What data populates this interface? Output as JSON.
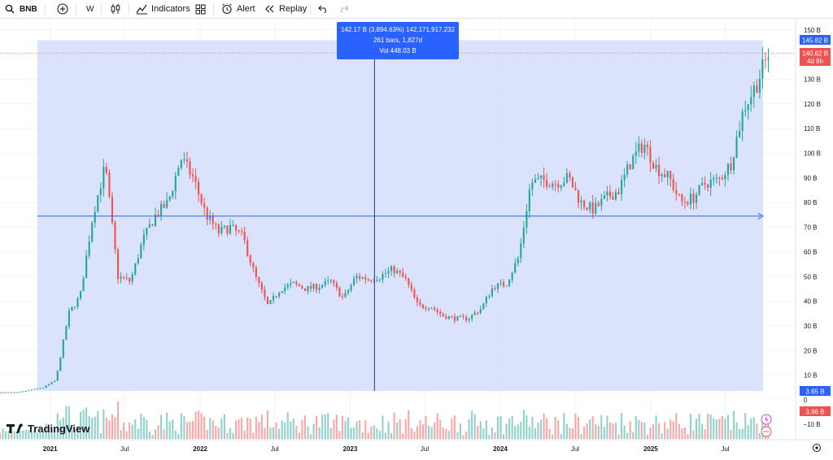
{
  "toolbar": {
    "symbol": "BNB",
    "interval": "W",
    "indicators_label": "Indicators",
    "alert_label": "Alert",
    "replay_label": "Replay"
  },
  "measure_tooltip": {
    "line1": "142.17 B (3,894.63%) 142,171,917,232",
    "line2": "261 bars, 1,827d",
    "line3": "Vol 448.03 B"
  },
  "price_axis": {
    "ticks": [
      "150 B",
      "140 B",
      "130 B",
      "120 B",
      "110 B",
      "100 B",
      "90 B",
      "80 B",
      "70 B",
      "60 B",
      "50 B",
      "40 B",
      "30 B",
      "20 B",
      "10 B"
    ],
    "top_label": "145.82 B",
    "current_label": "140.62 B",
    "countdown_label": "4d 8h",
    "bottom_label": "3.65 B"
  },
  "volume_axis": {
    "ticks": [
      "0",
      "−10 B"
    ],
    "current_label": "3.96 B"
  },
  "time_axis": {
    "labels": [
      "2021",
      "Jul",
      "2022",
      "Jul",
      "2023",
      "Jul",
      "2024",
      "Jul",
      "2025",
      "Jul"
    ]
  },
  "logo_text": "TradingView",
  "colors": {
    "up": "#26a69a",
    "down": "#ef5350",
    "measure_fill": "#d4ddfb",
    "measure_line": "#2962ff",
    "accent": "#2962ff"
  },
  "chart_data": {
    "type": "candlestick",
    "title": "",
    "x_start": "2020-09",
    "x_end": "2025-10",
    "y_unit": "B",
    "ylim": [
      0,
      150
    ],
    "weekly_close_trend": [
      {
        "date": "2020-10",
        "value": 3
      },
      {
        "date": "2020-12",
        "value": 5
      },
      {
        "date": "2021-01",
        "value": 8
      },
      {
        "date": "2021-02",
        "value": 35
      },
      {
        "date": "2021-03",
        "value": 42
      },
      {
        "date": "2021-04",
        "value": 75
      },
      {
        "date": "2021-05",
        "value": 95
      },
      {
        "date": "2021-06",
        "value": 50
      },
      {
        "date": "2021-07",
        "value": 48
      },
      {
        "date": "2021-08",
        "value": 65
      },
      {
        "date": "2021-09",
        "value": 75
      },
      {
        "date": "2021-10",
        "value": 80
      },
      {
        "date": "2021-11",
        "value": 98
      },
      {
        "date": "2021-12",
        "value": 90
      },
      {
        "date": "2022-01",
        "value": 75
      },
      {
        "date": "2022-02",
        "value": 68
      },
      {
        "date": "2022-03",
        "value": 70
      },
      {
        "date": "2022-04",
        "value": 66
      },
      {
        "date": "2022-05",
        "value": 50
      },
      {
        "date": "2022-06",
        "value": 38
      },
      {
        "date": "2022-07",
        "value": 45
      },
      {
        "date": "2022-08",
        "value": 47
      },
      {
        "date": "2022-09",
        "value": 45
      },
      {
        "date": "2022-10",
        "value": 46
      },
      {
        "date": "2022-11",
        "value": 48
      },
      {
        "date": "2022-12",
        "value": 41
      },
      {
        "date": "2023-01",
        "value": 50
      },
      {
        "date": "2023-02",
        "value": 49
      },
      {
        "date": "2023-03",
        "value": 50
      },
      {
        "date": "2023-04",
        "value": 53
      },
      {
        "date": "2023-05",
        "value": 49
      },
      {
        "date": "2023-06",
        "value": 38
      },
      {
        "date": "2023-07",
        "value": 38
      },
      {
        "date": "2023-08",
        "value": 34
      },
      {
        "date": "2023-09",
        "value": 33
      },
      {
        "date": "2023-10",
        "value": 33
      },
      {
        "date": "2023-11",
        "value": 37
      },
      {
        "date": "2023-12",
        "value": 46
      },
      {
        "date": "2024-01",
        "value": 47
      },
      {
        "date": "2024-02",
        "value": 58
      },
      {
        "date": "2024-03",
        "value": 88
      },
      {
        "date": "2024-04",
        "value": 89
      },
      {
        "date": "2024-05",
        "value": 88
      },
      {
        "date": "2024-06",
        "value": 90
      },
      {
        "date": "2024-07",
        "value": 80
      },
      {
        "date": "2024-08",
        "value": 77
      },
      {
        "date": "2024-09",
        "value": 82
      },
      {
        "date": "2024-10",
        "value": 85
      },
      {
        "date": "2024-11",
        "value": 97
      },
      {
        "date": "2024-12",
        "value": 104
      },
      {
        "date": "2025-01",
        "value": 94
      },
      {
        "date": "2025-02",
        "value": 90
      },
      {
        "date": "2025-03",
        "value": 80
      },
      {
        "date": "2025-04",
        "value": 82
      },
      {
        "date": "2025-05",
        "value": 88
      },
      {
        "date": "2025-06",
        "value": 89
      },
      {
        "date": "2025-07",
        "value": 96
      },
      {
        "date": "2025-08",
        "value": 118
      },
      {
        "date": "2025-09",
        "value": 128
      },
      {
        "date": "2025-10",
        "value": 140.62
      }
    ],
    "measure_range": {
      "x_from": "2020-12",
      "x_to": "2025-10",
      "y_from": 3.65,
      "y_to": 145.82
    },
    "crosshair": {
      "x": "2023-03",
      "y": 74.5
    }
  }
}
